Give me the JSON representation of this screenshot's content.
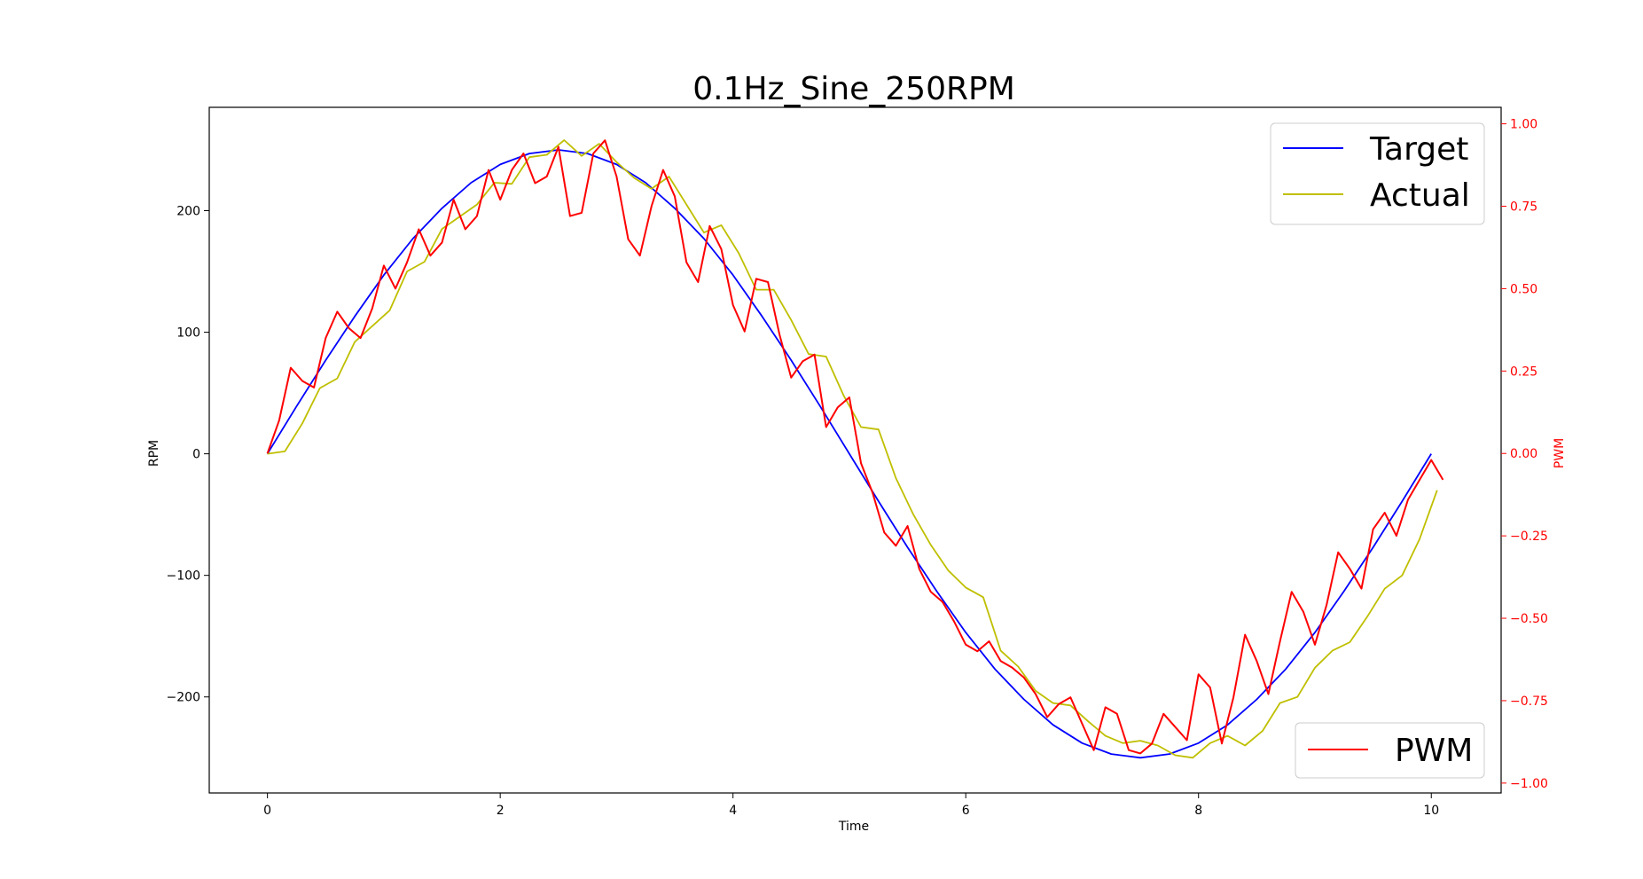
{
  "chart_data": {
    "type": "line",
    "title": "0.1Hz_Sine_250RPM",
    "xlabel": "Time",
    "ylabel": "RPM",
    "y2label": "PWM",
    "xlim": [
      -0.5,
      10.6
    ],
    "ylim": [
      -279,
      285
    ],
    "y2lim": [
      -1.03,
      1.05
    ],
    "xticks": [
      0,
      2,
      4,
      6,
      8,
      10
    ],
    "xtick_labels": [
      "0",
      "2",
      "4",
      "6",
      "8",
      "10"
    ],
    "yticks": [
      -200,
      -100,
      0,
      100,
      200
    ],
    "ytick_labels": [
      "−200",
      "−100",
      "0",
      "100",
      "200"
    ],
    "y2ticks": [
      -1.0,
      -0.75,
      -0.5,
      -0.25,
      0.0,
      0.25,
      0.5,
      0.75,
      1.0
    ],
    "y2tick_labels": [
      "−1.00",
      "−0.75",
      "−0.50",
      "−0.25",
      "0.00",
      "0.25",
      "0.50",
      "0.75",
      "1.00"
    ],
    "grid": false,
    "legend_top": {
      "placement": "top-right",
      "entries": [
        "Target",
        "Actual"
      ]
    },
    "legend_bottom": {
      "placement": "bottom-right",
      "entries": [
        "PWM"
      ]
    },
    "series": [
      {
        "name": "Target",
        "axis": "left",
        "color": "#0000ff",
        "x": [
          0,
          0.25,
          0.5,
          0.75,
          1,
          1.25,
          1.5,
          1.75,
          2,
          2.25,
          2.5,
          2.75,
          3,
          3.25,
          3.5,
          3.75,
          4,
          4.25,
          4.5,
          4.75,
          5,
          5.25,
          5.5,
          5.75,
          6,
          6.25,
          6.5,
          6.75,
          7,
          7.25,
          7.5,
          7.75,
          8,
          8.25,
          8.5,
          8.75,
          9,
          9.25,
          9.5,
          9.75,
          10
        ],
        "y": [
          0,
          39,
          77,
          113,
          147,
          177,
          202,
          223,
          238,
          247,
          250,
          247,
          238,
          223,
          202,
          177,
          147,
          113,
          77,
          39,
          0,
          -39,
          -77,
          -113,
          -147,
          -177,
          -202,
          -223,
          -238,
          -247,
          -250,
          -247,
          -238,
          -223,
          -202,
          -177,
          -147,
          -113,
          -77,
          -39,
          0
        ]
      },
      {
        "name": "Actual",
        "axis": "left",
        "color": "#bfbf00",
        "x": [
          0,
          0.15,
          0.3,
          0.45,
          0.6,
          0.75,
          0.9,
          1.05,
          1.2,
          1.35,
          1.5,
          1.65,
          1.8,
          1.95,
          2.1,
          2.25,
          2.4,
          2.55,
          2.7,
          2.85,
          3.0,
          3.15,
          3.3,
          3.45,
          3.6,
          3.75,
          3.9,
          4.05,
          4.2,
          4.35,
          4.5,
          4.65,
          4.8,
          4.95,
          5.1,
          5.25,
          5.4,
          5.55,
          5.7,
          5.85,
          6.0,
          6.15,
          6.3,
          6.45,
          6.6,
          6.75,
          6.9,
          7.05,
          7.2,
          7.35,
          7.5,
          7.65,
          7.8,
          7.95,
          8.1,
          8.25,
          8.4,
          8.55,
          8.7,
          8.85,
          9.0,
          9.15,
          9.3,
          9.45,
          9.6,
          9.75,
          9.9,
          10.05
        ],
        "y": [
          0,
          2,
          25,
          54,
          62,
          92,
          105,
          118,
          150,
          158,
          185,
          195,
          205,
          223,
          222,
          244,
          246,
          258,
          245,
          255,
          240,
          227,
          218,
          228,
          205,
          182,
          188,
          165,
          135,
          135,
          110,
          82,
          80,
          48,
          22,
          20,
          -20,
          -50,
          -75,
          -96,
          -110,
          -118,
          -162,
          -175,
          -195,
          -205,
          -207,
          -220,
          -232,
          -238,
          -236,
          -240,
          -248,
          -250,
          -238,
          -232,
          -240,
          -228,
          -205,
          -200,
          -176,
          -162,
          -155,
          -134,
          -111,
          -100,
          -70,
          -30
        ]
      },
      {
        "name": "PWM",
        "axis": "right",
        "color": "#ff0000",
        "x": [
          0,
          0.1,
          0.2,
          0.3,
          0.4,
          0.5,
          0.6,
          0.7,
          0.8,
          0.9,
          1.0,
          1.1,
          1.2,
          1.3,
          1.4,
          1.5,
          1.6,
          1.7,
          1.8,
          1.9,
          2.0,
          2.1,
          2.2,
          2.3,
          2.4,
          2.5,
          2.6,
          2.7,
          2.8,
          2.9,
          3.0,
          3.1,
          3.2,
          3.3,
          3.4,
          3.5,
          3.6,
          3.7,
          3.8,
          3.9,
          4.0,
          4.1,
          4.2,
          4.3,
          4.4,
          4.5,
          4.6,
          4.7,
          4.8,
          4.9,
          5.0,
          5.1,
          5.2,
          5.3,
          5.4,
          5.5,
          5.6,
          5.7,
          5.8,
          5.9,
          6.0,
          6.1,
          6.2,
          6.3,
          6.4,
          6.5,
          6.6,
          6.7,
          6.8,
          6.9,
          7.0,
          7.1,
          7.2,
          7.3,
          7.4,
          7.5,
          7.6,
          7.7,
          7.8,
          7.9,
          8.0,
          8.1,
          8.2,
          8.3,
          8.4,
          8.5,
          8.6,
          8.7,
          8.8,
          8.9,
          9.0,
          9.1,
          9.2,
          9.3,
          9.4,
          9.5,
          9.6,
          9.7,
          9.8,
          9.9,
          10.0,
          10.1
        ],
        "y": [
          0.0,
          0.1,
          0.26,
          0.22,
          0.2,
          0.35,
          0.43,
          0.38,
          0.35,
          0.44,
          0.57,
          0.5,
          0.58,
          0.68,
          0.6,
          0.64,
          0.77,
          0.68,
          0.72,
          0.86,
          0.77,
          0.86,
          0.91,
          0.82,
          0.84,
          0.93,
          0.72,
          0.73,
          0.91,
          0.95,
          0.84,
          0.65,
          0.6,
          0.75,
          0.86,
          0.78,
          0.58,
          0.52,
          0.69,
          0.62,
          0.45,
          0.37,
          0.53,
          0.52,
          0.36,
          0.23,
          0.28,
          0.3,
          0.08,
          0.14,
          0.17,
          -0.03,
          -0.12,
          -0.24,
          -0.28,
          -0.22,
          -0.35,
          -0.42,
          -0.45,
          -0.51,
          -0.58,
          -0.6,
          -0.57,
          -0.63,
          -0.65,
          -0.68,
          -0.73,
          -0.8,
          -0.76,
          -0.74,
          -0.82,
          -0.9,
          -0.77,
          -0.79,
          -0.9,
          -0.91,
          -0.88,
          -0.79,
          -0.83,
          -0.87,
          -0.67,
          -0.71,
          -0.88,
          -0.74,
          -0.55,
          -0.63,
          -0.73,
          -0.57,
          -0.42,
          -0.48,
          -0.58,
          -0.46,
          -0.3,
          -0.35,
          -0.41,
          -0.23,
          -0.18,
          -0.25,
          -0.14,
          -0.08,
          -0.02,
          -0.08
        ]
      }
    ]
  }
}
